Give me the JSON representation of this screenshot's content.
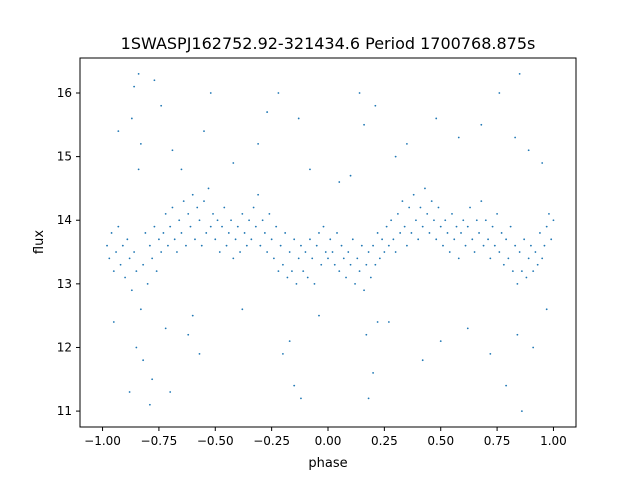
{
  "chart_data": {
    "type": "scatter",
    "title": "1SWASPJ162752.92-321434.6 Period 1700768.875s",
    "xlabel": "phase",
    "ylabel": "flux",
    "xlim": [
      -1.1,
      1.1
    ],
    "ylim": [
      10.75,
      16.55
    ],
    "xticks": [
      -1.0,
      -0.75,
      -0.5,
      -0.25,
      0.0,
      0.25,
      0.5,
      0.75,
      1.0
    ],
    "xtick_labels": [
      "−1.00",
      "−0.75",
      "−0.50",
      "−0.25",
      "0.00",
      "0.25",
      "0.50",
      "0.75",
      "1.00"
    ],
    "yticks": [
      11,
      12,
      13,
      14,
      15,
      16
    ],
    "ytick_labels": [
      "11",
      "12",
      "13",
      "14",
      "15",
      "16"
    ],
    "grid": false,
    "legend": "none",
    "series_color": "#1f77b4",
    "points": [
      [
        -0.98,
        13.6
      ],
      [
        -0.97,
        13.4
      ],
      [
        -0.96,
        13.8
      ],
      [
        -0.95,
        13.2
      ],
      [
        -0.94,
        13.5
      ],
      [
        -0.93,
        13.9
      ],
      [
        -0.92,
        13.3
      ],
      [
        -0.91,
        13.6
      ],
      [
        -0.9,
        13.1
      ],
      [
        -0.89,
        13.7
      ],
      [
        -0.88,
        13.4
      ],
      [
        -0.87,
        12.9
      ],
      [
        -0.86,
        13.5
      ],
      [
        -0.85,
        13.2
      ],
      [
        -0.84,
        14.8
      ],
      [
        -0.83,
        12.6
      ],
      [
        -0.82,
        13.3
      ],
      [
        -0.81,
        13.8
      ],
      [
        -0.8,
        13.0
      ],
      [
        -0.79,
        13.6
      ],
      [
        -0.78,
        13.4
      ],
      [
        -0.77,
        13.9
      ],
      [
        -0.76,
        13.2
      ],
      [
        -0.75,
        13.7
      ],
      [
        -0.74,
        13.5
      ],
      [
        -0.73,
        13.8
      ],
      [
        -0.72,
        14.1
      ],
      [
        -0.71,
        13.6
      ],
      [
        -0.7,
        13.9
      ],
      [
        -0.69,
        14.2
      ],
      [
        -0.68,
        13.7
      ],
      [
        -0.67,
        13.5
      ],
      [
        -0.66,
        14.0
      ],
      [
        -0.65,
        13.8
      ],
      [
        -0.64,
        14.3
      ],
      [
        -0.63,
        13.6
      ],
      [
        -0.62,
        14.1
      ],
      [
        -0.61,
        13.9
      ],
      [
        -0.6,
        14.4
      ],
      [
        -0.59,
        13.7
      ],
      [
        -0.58,
        14.2
      ],
      [
        -0.57,
        14.0
      ],
      [
        -0.56,
        13.6
      ],
      [
        -0.55,
        14.3
      ],
      [
        -0.54,
        13.8
      ],
      [
        -0.53,
        14.5
      ],
      [
        -0.52,
        13.9
      ],
      [
        -0.51,
        14.1
      ],
      [
        -0.5,
        13.7
      ],
      [
        -0.49,
        14.0
      ],
      [
        -0.48,
        13.5
      ],
      [
        -0.47,
        13.9
      ],
      [
        -0.46,
        14.2
      ],
      [
        -0.45,
        13.6
      ],
      [
        -0.44,
        13.8
      ],
      [
        -0.43,
        14.0
      ],
      [
        -0.42,
        13.4
      ],
      [
        -0.41,
        13.7
      ],
      [
        -0.4,
        13.9
      ],
      [
        -0.39,
        13.5
      ],
      [
        -0.38,
        14.1
      ],
      [
        -0.37,
        13.8
      ],
      [
        -0.36,
        13.6
      ],
      [
        -0.35,
        14.0
      ],
      [
        -0.34,
        13.7
      ],
      [
        -0.33,
        14.2
      ],
      [
        -0.32,
        13.9
      ],
      [
        -0.31,
        14.4
      ],
      [
        -0.3,
        13.6
      ],
      [
        -0.29,
        14.0
      ],
      [
        -0.28,
        13.8
      ],
      [
        -0.27,
        13.5
      ],
      [
        -0.26,
        14.1
      ],
      [
        -0.25,
        13.7
      ],
      [
        -0.24,
        13.4
      ],
      [
        -0.23,
        13.9
      ],
      [
        -0.22,
        13.2
      ],
      [
        -0.21,
        13.6
      ],
      [
        -0.2,
        13.3
      ],
      [
        -0.19,
        13.8
      ],
      [
        -0.18,
        13.1
      ],
      [
        -0.17,
        13.5
      ],
      [
        -0.16,
        13.2
      ],
      [
        -0.15,
        13.7
      ],
      [
        -0.14,
        13.0
      ],
      [
        -0.13,
        13.4
      ],
      [
        -0.12,
        13.6
      ],
      [
        -0.11,
        13.2
      ],
      [
        -0.1,
        13.5
      ],
      [
        -0.09,
        13.1
      ],
      [
        -0.08,
        13.7
      ],
      [
        -0.07,
        13.4
      ],
      [
        -0.06,
        13.0
      ],
      [
        -0.05,
        13.6
      ],
      [
        -0.04,
        13.8
      ],
      [
        -0.03,
        13.3
      ],
      [
        -0.02,
        13.9
      ],
      [
        -0.01,
        13.5
      ],
      [
        0.0,
        13.4
      ],
      [
        0.01,
        13.7
      ],
      [
        0.02,
        13.5
      ],
      [
        0.03,
        13.3
      ],
      [
        0.04,
        13.8
      ],
      [
        0.05,
        13.2
      ],
      [
        0.06,
        13.6
      ],
      [
        0.07,
        13.4
      ],
      [
        0.08,
        13.1
      ],
      [
        0.09,
        13.5
      ],
      [
        0.1,
        13.3
      ],
      [
        0.11,
        13.7
      ],
      [
        0.12,
        13.0
      ],
      [
        0.13,
        13.4
      ],
      [
        0.14,
        13.2
      ],
      [
        0.15,
        13.6
      ],
      [
        0.16,
        12.9
      ],
      [
        0.17,
        13.3
      ],
      [
        0.18,
        13.5
      ],
      [
        0.19,
        13.1
      ],
      [
        0.2,
        13.6
      ],
      [
        0.21,
        13.3
      ],
      [
        0.22,
        13.8
      ],
      [
        0.23,
        13.4
      ],
      [
        0.24,
        13.7
      ],
      [
        0.25,
        13.5
      ],
      [
        0.26,
        13.9
      ],
      [
        0.27,
        13.6
      ],
      [
        0.28,
        14.0
      ],
      [
        0.29,
        13.7
      ],
      [
        0.3,
        13.5
      ],
      [
        0.31,
        14.1
      ],
      [
        0.32,
        13.8
      ],
      [
        0.33,
        14.3
      ],
      [
        0.34,
        13.9
      ],
      [
        0.35,
        13.6
      ],
      [
        0.36,
        14.2
      ],
      [
        0.37,
        13.8
      ],
      [
        0.38,
        14.4
      ],
      [
        0.39,
        14.0
      ],
      [
        0.4,
        13.7
      ],
      [
        0.41,
        14.2
      ],
      [
        0.42,
        13.9
      ],
      [
        0.43,
        14.5
      ],
      [
        0.44,
        14.1
      ],
      [
        0.45,
        13.8
      ],
      [
        0.46,
        14.3
      ],
      [
        0.47,
        14.0
      ],
      [
        0.48,
        13.7
      ],
      [
        0.49,
        14.2
      ],
      [
        0.5,
        13.9
      ],
      [
        0.51,
        13.6
      ],
      [
        0.52,
        14.0
      ],
      [
        0.53,
        13.8
      ],
      [
        0.54,
        13.5
      ],
      [
        0.55,
        14.1
      ],
      [
        0.56,
        13.7
      ],
      [
        0.57,
        13.9
      ],
      [
        0.58,
        13.4
      ],
      [
        0.59,
        13.8
      ],
      [
        0.6,
        14.0
      ],
      [
        0.61,
        13.6
      ],
      [
        0.62,
        13.9
      ],
      [
        0.63,
        14.2
      ],
      [
        0.64,
        13.7
      ],
      [
        0.65,
        13.5
      ],
      [
        0.66,
        14.0
      ],
      [
        0.67,
        13.8
      ],
      [
        0.68,
        14.3
      ],
      [
        0.69,
        13.6
      ],
      [
        0.7,
        14.0
      ],
      [
        0.71,
        13.7
      ],
      [
        0.72,
        13.4
      ],
      [
        0.73,
        13.9
      ],
      [
        0.74,
        13.6
      ],
      [
        0.75,
        14.1
      ],
      [
        0.76,
        13.5
      ],
      [
        0.77,
        13.8
      ],
      [
        0.78,
        13.3
      ],
      [
        0.79,
        13.7
      ],
      [
        0.8,
        13.4
      ],
      [
        0.81,
        13.9
      ],
      [
        0.82,
        13.2
      ],
      [
        0.83,
        13.6
      ],
      [
        0.84,
        13.0
      ],
      [
        0.85,
        13.5
      ],
      [
        0.86,
        13.2
      ],
      [
        0.87,
        13.7
      ],
      [
        0.88,
        13.1
      ],
      [
        0.89,
        13.4
      ],
      [
        0.9,
        13.6
      ],
      [
        0.91,
        13.2
      ],
      [
        0.92,
        13.5
      ],
      [
        0.93,
        13.3
      ],
      [
        0.94,
        13.8
      ],
      [
        0.95,
        13.4
      ],
      [
        0.96,
        13.6
      ],
      [
        0.97,
        13.9
      ],
      [
        0.98,
        14.1
      ],
      [
        0.99,
        13.7
      ],
      [
        1.0,
        14.0
      ],
      [
        -0.86,
        16.1
      ],
      [
        -0.84,
        16.3
      ],
      [
        -0.87,
        15.6
      ],
      [
        -0.83,
        15.2
      ],
      [
        -0.82,
        11.8
      ],
      [
        -0.85,
        12.0
      ],
      [
        -0.88,
        11.3
      ],
      [
        -0.79,
        11.1
      ],
      [
        -0.74,
        15.8
      ],
      [
        -0.77,
        16.2
      ],
      [
        -0.78,
        11.5
      ],
      [
        -0.72,
        12.3
      ],
      [
        -0.69,
        15.1
      ],
      [
        -0.7,
        11.3
      ],
      [
        -0.55,
        15.4
      ],
      [
        -0.6,
        12.5
      ],
      [
        -0.52,
        16.0
      ],
      [
        -0.57,
        11.9
      ],
      [
        -0.27,
        15.7
      ],
      [
        -0.22,
        16.0
      ],
      [
        -0.2,
        11.9
      ],
      [
        -0.17,
        12.1
      ],
      [
        -0.15,
        11.4
      ],
      [
        -0.13,
        15.6
      ],
      [
        -0.12,
        11.2
      ],
      [
        0.14,
        16.0
      ],
      [
        0.16,
        15.5
      ],
      [
        0.17,
        12.2
      ],
      [
        0.2,
        11.6
      ],
      [
        0.18,
        11.2
      ],
      [
        0.21,
        15.8
      ],
      [
        0.22,
        12.4
      ],
      [
        0.35,
        15.2
      ],
      [
        0.42,
        11.8
      ],
      [
        0.48,
        15.6
      ],
      [
        0.5,
        12.1
      ],
      [
        0.68,
        15.5
      ],
      [
        0.72,
        11.9
      ],
      [
        0.76,
        16.0
      ],
      [
        0.79,
        11.4
      ],
      [
        0.83,
        15.3
      ],
      [
        0.85,
        16.3
      ],
      [
        0.86,
        11.0
      ],
      [
        0.84,
        12.2
      ],
      [
        0.89,
        15.1
      ],
      [
        0.91,
        12.0
      ],
      [
        -0.93,
        15.4
      ],
      [
        -0.95,
        12.4
      ],
      [
        0.95,
        14.9
      ],
      [
        0.97,
        12.6
      ],
      [
        -0.42,
        14.9
      ],
      [
        -0.38,
        12.6
      ],
      [
        -0.31,
        15.2
      ],
      [
        0.27,
        12.4
      ],
      [
        0.3,
        15.0
      ],
      [
        0.58,
        15.3
      ],
      [
        0.62,
        12.3
      ],
      [
        -0.65,
        14.8
      ],
      [
        -0.62,
        12.2
      ],
      [
        0.05,
        14.6
      ],
      [
        -0.04,
        12.5
      ],
      [
        0.1,
        14.7
      ],
      [
        -0.08,
        14.8
      ]
    ]
  }
}
